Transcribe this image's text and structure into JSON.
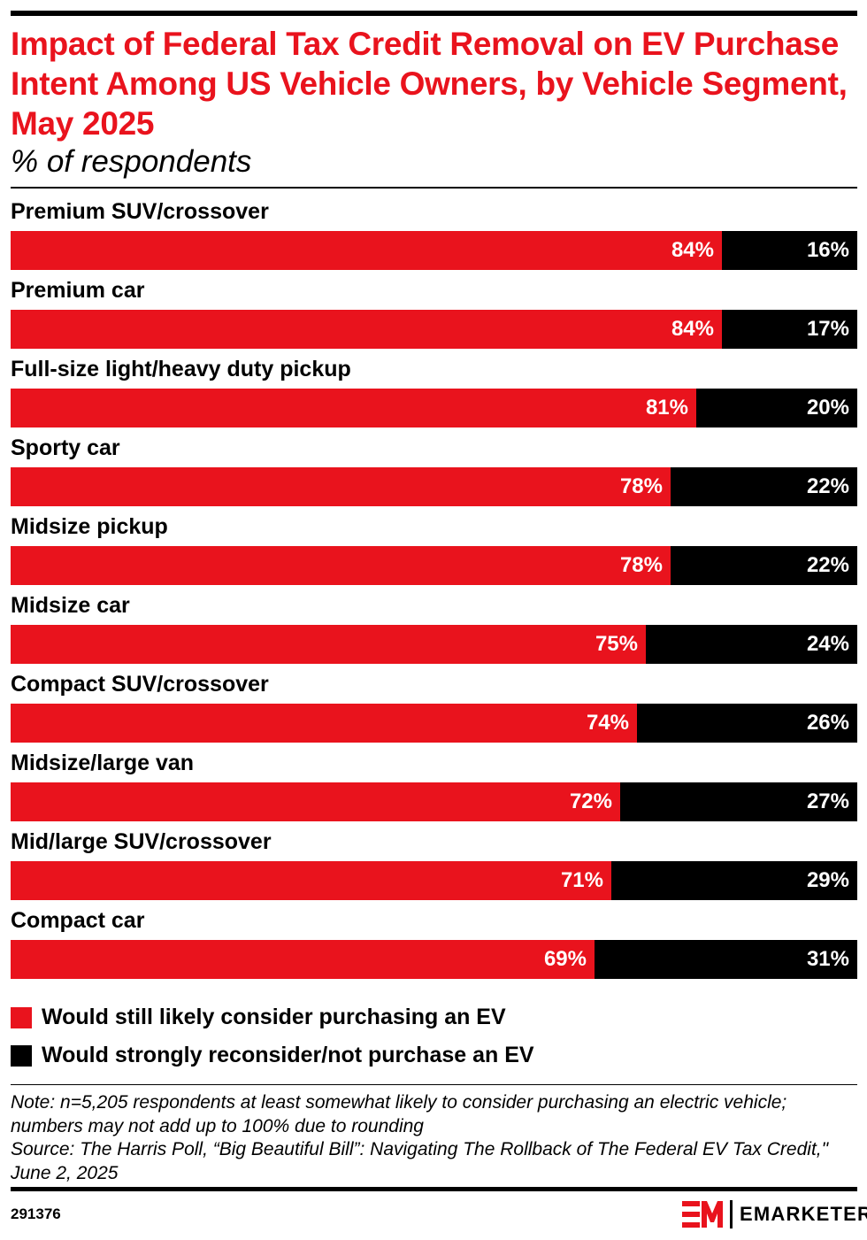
{
  "header": {
    "title": "Impact of Federal Tax Credit Removal on EV Purchase Intent Among US Vehicle Owners, by Vehicle Segment, May 2025",
    "subtitle": "% of respondents"
  },
  "colors": {
    "accent_red": "#e9131d",
    "series_black": "#000000",
    "label_text": "#ffffff"
  },
  "chart_data": {
    "type": "bar",
    "orientation": "horizontal",
    "stacked": true,
    "title": "Impact of Federal Tax Credit Removal on EV Purchase Intent Among US Vehicle Owners, by Vehicle Segment, May 2025",
    "subtitle": "% of respondents",
    "xlabel": "",
    "ylabel": "",
    "xlim": [
      0,
      100
    ],
    "grid": false,
    "legend_position": "bottom",
    "categories": [
      "Premium SUV/crossover",
      "Premium car",
      "Full-size light/heavy duty pickup",
      "Sporty car",
      "Midsize pickup",
      "Midsize car",
      "Compact SUV/crossover",
      "Midsize/large van",
      "Mid/large SUV/crossover",
      "Compact car"
    ],
    "series": [
      {
        "name": "Would still likely consider purchasing an EV",
        "color": "#e9131d",
        "values": [
          84,
          84,
          81,
          78,
          78,
          75,
          74,
          72,
          71,
          69
        ]
      },
      {
        "name": "Would strongly reconsider/not purchase an EV",
        "color": "#000000",
        "values": [
          16,
          17,
          20,
          22,
          22,
          24,
          26,
          27,
          29,
          31
        ]
      }
    ],
    "data_labels": [
      [
        "84%",
        "84%",
        "81%",
        "78%",
        "78%",
        "75%",
        "74%",
        "72%",
        "71%",
        "69%"
      ],
      [
        "16%",
        "17%",
        "20%",
        "22%",
        "22%",
        "24%",
        "26%",
        "27%",
        "29%",
        "31%"
      ]
    ]
  },
  "footer": {
    "note": "Note: n=5,205 respondents at least somewhat likely to consider purchasing an electric vehicle; numbers may not add up to 100% due to rounding",
    "source": "Source: The Harris Poll, “Big Beautiful Bill”: Navigating The Rollback of The Federal EV Tax Credit,\" June 2, 2025",
    "chart_id": "291376",
    "brand_name": "EMARKETER",
    "brand_mark": "EM-logo-icon"
  }
}
